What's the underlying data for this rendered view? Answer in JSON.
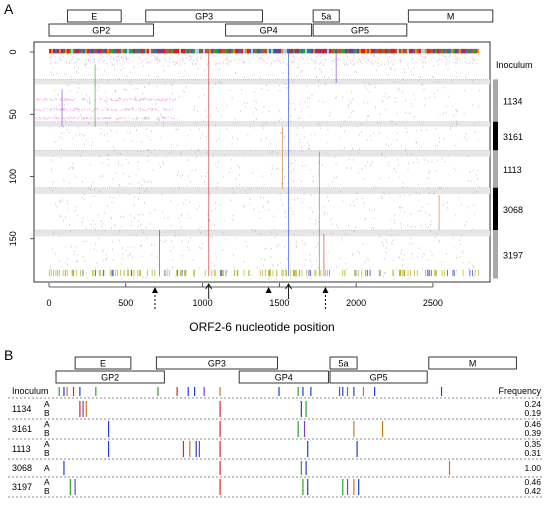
{
  "panel_a": {
    "letter": "A",
    "genes_top": [
      {
        "name": "E",
        "start": 120,
        "end": 470
      },
      {
        "name": "GP3",
        "start": 630,
        "end": 1390
      },
      {
        "name": "5a",
        "start": 1720,
        "end": 1890
      },
      {
        "name": "M",
        "start": 2340,
        "end": 2890
      }
    ],
    "genes_bottom": [
      {
        "name": "GP2",
        "start": 0,
        "end": 680
      },
      {
        "name": "GP4",
        "start": 1150,
        "end": 1710
      },
      {
        "name": "GP5",
        "start": 1720,
        "end": 2330
      }
    ],
    "inoculum_header": "Inoculum",
    "inocula": [
      {
        "label": "1134",
        "shade": "#a9a9a9"
      },
      {
        "label": "3161",
        "shade": "#000000"
      },
      {
        "label": "1113",
        "shade": "#a9a9a9"
      },
      {
        "label": "3068",
        "shade": "#000000"
      },
      {
        "label": "3197",
        "shade": "#a9a9a9"
      }
    ],
    "y_ticks": [
      "0",
      "50",
      "100",
      "150"
    ],
    "x_ticks": [
      "0",
      "500",
      "1000",
      "1500",
      "2000",
      "2500"
    ],
    "x_title": "ORF2-6 nucleotide position",
    "arrowheads_solid": [
      690,
      1430,
      1800
    ],
    "arrows_open_up": [
      1040,
      1560
    ]
  },
  "panel_b": {
    "letter": "B",
    "genes_top": [
      {
        "name": "E",
        "start": 120,
        "end": 470
      },
      {
        "name": "GP3",
        "start": 630,
        "end": 1390
      },
      {
        "name": "5a",
        "start": 1720,
        "end": 1890
      },
      {
        "name": "M",
        "start": 2340,
        "end": 2890
      }
    ],
    "genes_bottom": [
      {
        "name": "GP2",
        "start": 0,
        "end": 680
      },
      {
        "name": "GP4",
        "start": 1150,
        "end": 1710
      },
      {
        "name": "GP5",
        "start": 1720,
        "end": 2330
      }
    ],
    "inoculum_header": "Inoculum",
    "frequency_header": "Frequency",
    "rows": [
      {
        "inoculum": "1134",
        "variants": [
          {
            "letter": "A",
            "frequency": "0.24"
          },
          {
            "letter": "B",
            "frequency": "0.19"
          }
        ]
      },
      {
        "inoculum": "3161",
        "variants": [
          {
            "letter": "A",
            "frequency": "0.46"
          },
          {
            "letter": "B",
            "frequency": "0.39"
          }
        ]
      },
      {
        "inoculum": "1113",
        "variants": [
          {
            "letter": "A",
            "frequency": "0.35"
          },
          {
            "letter": "B",
            "frequency": "0.31"
          }
        ]
      },
      {
        "inoculum": "3068",
        "variants": [
          {
            "letter": "A",
            "frequency": "1.00"
          }
        ]
      },
      {
        "inoculum": "3197",
        "variants": [
          {
            "letter": "A",
            "frequency": "0.46"
          },
          {
            "letter": "B",
            "frequency": "0.42"
          }
        ]
      }
    ]
  },
  "colors": {
    "red": "#d62728",
    "blue": "#1f3fd6",
    "green": "#2ca02c",
    "orange": "#c8781f",
    "purple": "#7b3fc4",
    "olive": "#b8b020",
    "pink": "#f3b6ee"
  }
}
